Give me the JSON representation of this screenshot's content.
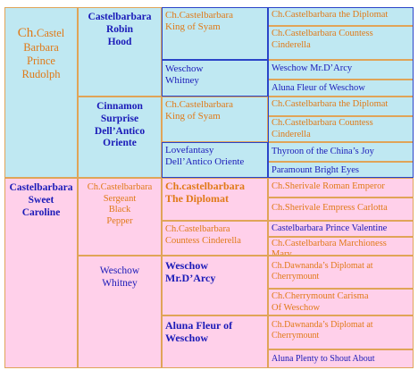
{
  "col1": {
    "sire": {
      "prefix": "Ch.",
      "name": "Castel\nBarbara\nPrince\nRudolph"
    },
    "dam": "Castelbarbara\nSweet\nCaroline"
  },
  "col2": {
    "s_s": "Castelbarbara\nRobin\nHood",
    "s_d": "Cinnamon\nSurprise\nDell’Antico\nOriente",
    "d_s": "Ch.Castelbarbara\nSergeant\nBlack\nPepper",
    "d_d": "Weschow\nWhitney"
  },
  "col3": {
    "r1": "Ch.Castelbarbara\nKing of Syam",
    "r2": "Weschow\nWhitney",
    "r3": "Ch.Castelbarbara\nKing of Syam",
    "r4": "Lovefantasy\nDell’Antico Oriente",
    "r5": "Ch.castelbarbara\nThe Diplomat",
    "r6": "Ch.Castelbarbara\nCountess Cinderella",
    "r7": "Weschow\nMr.D’Arcy",
    "r8": "Aluna Fleur of\nWeschow"
  },
  "col4": {
    "r1": "Ch.Castelbarbara the Diplomat",
    "r2": "Ch.Castelbarbara Countess\nCinderella",
    "r3": "Weschow Mr.D’Arcy",
    "r4": "Aluna Fleur of Weschow",
    "r5": "Ch.Castelbarbara the Diplomat",
    "r6": "Ch.Castelbarbara Countess\nCinderella",
    "r7": "Thyroon of the China’s Joy",
    "r8": "Paramount Bright Eyes",
    "r9": "Ch.Sherivale Roman Emperor",
    "r10": "Ch.Sherivale Empress Carlotta",
    "r11": "Castelbarbara Prince Valentine",
    "r12": "Ch.Castelbarbara Marchioness\nMary",
    "r13": "Ch.Dawnanda’s Diplomat at\nCherrymount",
    "r14": "Ch.Cherrymount Carisma\nOf Weschow",
    "r15": "Ch.Dawnanda’s Diplomat at\nCherrymount",
    "r16": "Aluna Plenty to Shout  About"
  },
  "colors": {
    "blue_bg": "#bfe8f2",
    "pink_bg": "#ffd0ea",
    "orange_text": "#e07a18",
    "blue_text": "#1a1ab8"
  }
}
